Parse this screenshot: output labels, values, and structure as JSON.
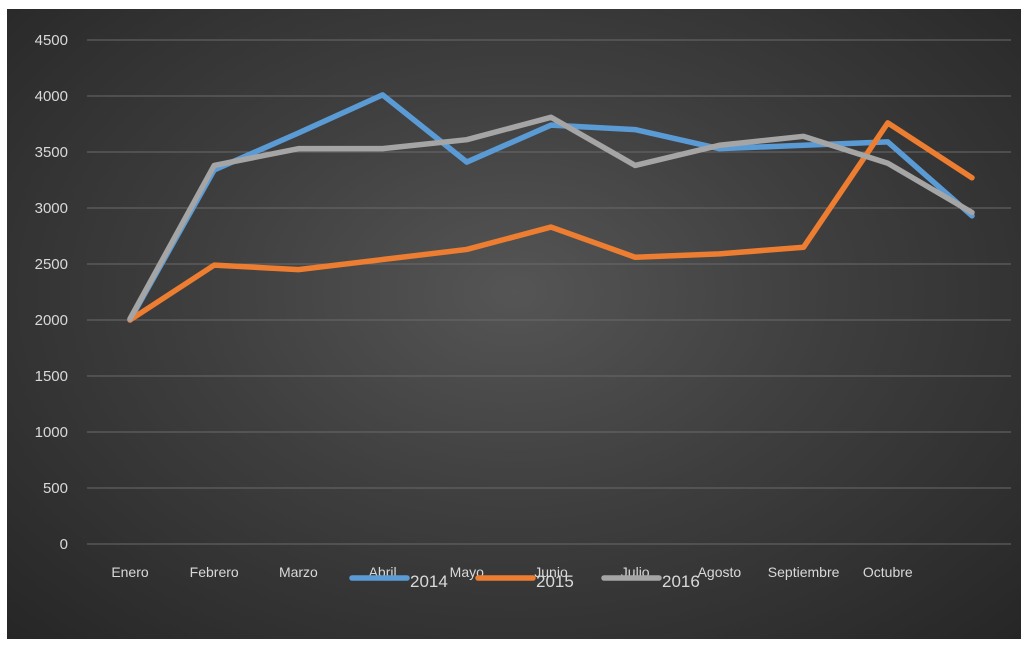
{
  "chart_data": {
    "type": "line",
    "categories": [
      "Enero",
      "Febrero",
      "Marzo",
      "Abril",
      "Mayo",
      "Junio",
      "Julio",
      "Agosto",
      "Septiembre",
      "Octubre",
      ""
    ],
    "ylim": [
      0,
      4500
    ],
    "yticks": [
      0,
      500,
      1000,
      1500,
      2000,
      2500,
      3000,
      3500,
      4000,
      4500
    ],
    "grid": true,
    "legend_position": "bottom",
    "series": [
      {
        "name": "2014",
        "color": "#5b9bd5",
        "values": [
          2000,
          3340,
          3670,
          4010,
          3410,
          3740,
          3700,
          3530,
          3560,
          3590,
          2930
        ]
      },
      {
        "name": "2015",
        "color": "#ed7d31",
        "values": [
          2000,
          2490,
          2450,
          2540,
          2630,
          2830,
          2560,
          2590,
          2650,
          3760,
          3270
        ]
      },
      {
        "name": "2016",
        "color": "#a5a5a5",
        "values": [
          2010,
          3380,
          3530,
          3530,
          3610,
          3810,
          3380,
          3560,
          3640,
          3400,
          2960
        ]
      }
    ]
  }
}
